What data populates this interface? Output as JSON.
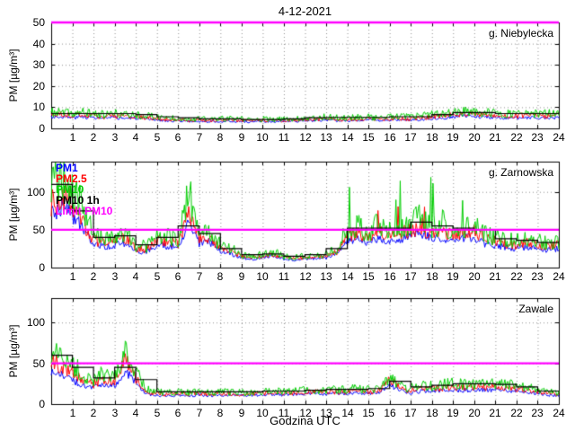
{
  "title": "4-12-2021",
  "xlabel": "Godzina UTC",
  "ylabel": "PM [µg/m³]",
  "legend": [
    "PM1",
    "PM2.5",
    "PM10",
    "PM10 1h",
    "Limit PM10"
  ],
  "legend_keys": [
    "pm1",
    "pm25",
    "pm10",
    "pm10_1h",
    "limit"
  ],
  "colors": {
    "pm1": "#0000ff",
    "pm25": "#ff0000",
    "pm10": "#00cc00",
    "pm10_1h": "#000000",
    "limit": "#ff00ff",
    "axis": "#000000",
    "grid": "rgba(0,0,0,0.45)"
  },
  "chart_data": [
    {
      "type": "line",
      "station": "g. Niebylecka",
      "ylim": [
        0,
        50
      ],
      "yticks": [
        0,
        10,
        20,
        30,
        40,
        50
      ],
      "xticks": [
        1,
        2,
        3,
        4,
        5,
        6,
        7,
        8,
        9,
        10,
        11,
        12,
        13,
        14,
        15,
        16,
        17,
        18,
        19,
        20,
        21,
        22,
        23,
        24
      ],
      "x_start": 0,
      "x_step_h": 0.5,
      "limit_pm10": 50,
      "series": {
        "pm1": [
          5.5,
          5.5,
          5,
          5.5,
          5,
          4.8,
          5,
          4.8,
          4.8,
          4.2,
          4,
          3.6,
          3.6,
          3.3,
          3.3,
          3.3,
          3.3,
          3.3,
          3.3,
          3,
          3.3,
          3,
          3.3,
          3.3,
          3.6,
          3.6,
          4,
          3.6,
          3.6,
          4,
          4,
          3.6,
          4,
          4,
          4,
          4.2,
          4.8,
          5,
          5.5,
          6,
          5.5,
          5.5,
          5,
          5,
          5,
          5,
          5,
          5,
          5
        ],
        "pm25": [
          6.5,
          6.5,
          6,
          6.5,
          6,
          5.5,
          6,
          5.5,
          5.5,
          5,
          4.5,
          4.2,
          4.2,
          3.8,
          3.8,
          3.8,
          3.8,
          3.8,
          3.8,
          3.5,
          3.8,
          3.5,
          3.8,
          3.8,
          4.2,
          4.2,
          4.5,
          4.2,
          4.2,
          4.5,
          4.5,
          4.2,
          4.5,
          4.5,
          4.5,
          5,
          5.5,
          6,
          6.5,
          7,
          6.5,
          6.5,
          6,
          6,
          6,
          6,
          6,
          6,
          6
        ],
        "pm10": [
          7.5,
          7.5,
          7,
          7.5,
          7,
          6.5,
          7,
          6.5,
          6.5,
          6,
          5.5,
          5,
          5,
          4.5,
          4.5,
          4.5,
          4.5,
          4.5,
          4.5,
          4,
          4.5,
          4,
          4.5,
          4.5,
          5,
          5,
          5.5,
          5,
          5,
          5.5,
          5.5,
          5,
          5.5,
          5.5,
          5.5,
          6,
          6.5,
          7,
          7.5,
          8,
          7.5,
          7.5,
          7,
          7,
          7,
          7,
          7,
          7,
          7
        ]
      },
      "pm10_1h": [
        7,
        7,
        7,
        7,
        6.5,
        5.5,
        5,
        4.5,
        4.5,
        4.2,
        4.2,
        4.5,
        5,
        5.2,
        5.2,
        5.2,
        5.5,
        5.5,
        6.5,
        7.5,
        7.5,
        7,
        7,
        7
      ]
    },
    {
      "type": "line",
      "station": "g. Zarnowska",
      "ylim": [
        0,
        140
      ],
      "yticks": [
        0,
        50,
        100
      ],
      "xticks": [
        1,
        2,
        3,
        4,
        5,
        6,
        7,
        8,
        9,
        10,
        11,
        12,
        13,
        14,
        15,
        16,
        17,
        18,
        19,
        20,
        21,
        22,
        23,
        24
      ],
      "x_start": 0,
      "x_step_h": 0.5,
      "limit_pm10": 50,
      "series": {
        "pm1": [
          70,
          80,
          70,
          50,
          32,
          27,
          30,
          32,
          22,
          20,
          30,
          28,
          27,
          60,
          32,
          34,
          22,
          18,
          13,
          11,
          13,
          15,
          11,
          10,
          11,
          12,
          13,
          18,
          35,
          38,
          32,
          40,
          35,
          38,
          40,
          45,
          38,
          40,
          35,
          38,
          40,
          32,
          29,
          27,
          25,
          27,
          25,
          23,
          25
        ],
        "pm25": [
          85,
          95,
          85,
          60,
          38,
          32,
          36,
          38,
          26,
          24,
          36,
          34,
          32,
          75,
          38,
          40,
          26,
          21,
          15,
          13,
          15,
          18,
          13,
          12,
          13,
          14,
          15,
          21,
          42,
          45,
          38,
          48,
          42,
          45,
          48,
          55,
          45,
          48,
          42,
          45,
          48,
          38,
          34,
          32,
          30,
          32,
          30,
          27,
          30
        ],
        "pm10": [
          110,
          120,
          105,
          75,
          45,
          38,
          42,
          45,
          30,
          28,
          42,
          40,
          38,
          100,
          45,
          48,
          30,
          25,
          18,
          15,
          18,
          22,
          15,
          14,
          15,
          16,
          18,
          25,
          50,
          55,
          45,
          60,
          50,
          55,
          60,
          70,
          55,
          60,
          50,
          55,
          60,
          45,
          40,
          38,
          35,
          38,
          35,
          32,
          35
        ]
      },
      "pm10_1h": [
        110,
        75,
        40,
        42,
        30,
        40,
        55,
        45,
        25,
        17,
        18,
        15,
        17,
        25,
        52,
        52,
        52,
        60,
        55,
        52,
        50,
        38,
        36,
        33
      ]
    },
    {
      "type": "line",
      "station": "Zawale",
      "ylim": [
        0,
        130
      ],
      "yticks": [
        0,
        50,
        100
      ],
      "xticks": [
        1,
        2,
        3,
        4,
        5,
        6,
        7,
        8,
        9,
        10,
        11,
        12,
        13,
        14,
        15,
        16,
        17,
        18,
        19,
        20,
        21,
        22,
        23,
        24
      ],
      "x_start": 0,
      "x_step_h": 0.5,
      "limit_pm10": 50,
      "series": {
        "pm1": [
          38,
          35,
          30,
          22,
          20,
          24,
          22,
          42,
          26,
          12,
          11,
          10,
          11,
          10,
          11,
          10,
          11,
          11,
          10,
          11,
          11,
          12,
          11,
          12,
          12,
          13,
          12,
          13,
          13,
          13,
          13,
          14,
          24,
          16,
          14,
          16,
          16,
          17,
          17,
          17,
          17,
          17,
          17,
          17,
          16,
          14,
          13,
          11,
          10
        ],
        "pm25": [
          52,
          48,
          40,
          28,
          25,
          30,
          28,
          55,
          32,
          15,
          13,
          12,
          13,
          12,
          13,
          12,
          13,
          13,
          12,
          13,
          13,
          14,
          13,
          14,
          15,
          15,
          14,
          15,
          15,
          16,
          15,
          17,
          30,
          19,
          17,
          19,
          19,
          20,
          21,
          20,
          21,
          20,
          21,
          20,
          19,
          17,
          15,
          13,
          12
        ],
        "pm10": [
          65,
          60,
          50,
          35,
          30,
          38,
          35,
          70,
          40,
          18,
          15,
          14,
          15,
          14,
          15,
          14,
          15,
          15,
          14,
          15,
          15,
          16,
          15,
          16,
          17,
          18,
          17,
          18,
          18,
          19,
          18,
          20,
          35,
          22,
          20,
          22,
          22,
          24,
          25,
          24,
          25,
          24,
          25,
          24,
          22,
          20,
          18,
          15,
          14
        ]
      },
      "pm10_1h": [
        60,
        45,
        32,
        45,
        30,
        15,
        15,
        15,
        15,
        15,
        16,
        16,
        17,
        18,
        18,
        19,
        28,
        21,
        23,
        25,
        25,
        24,
        21,
        16
      ]
    }
  ]
}
